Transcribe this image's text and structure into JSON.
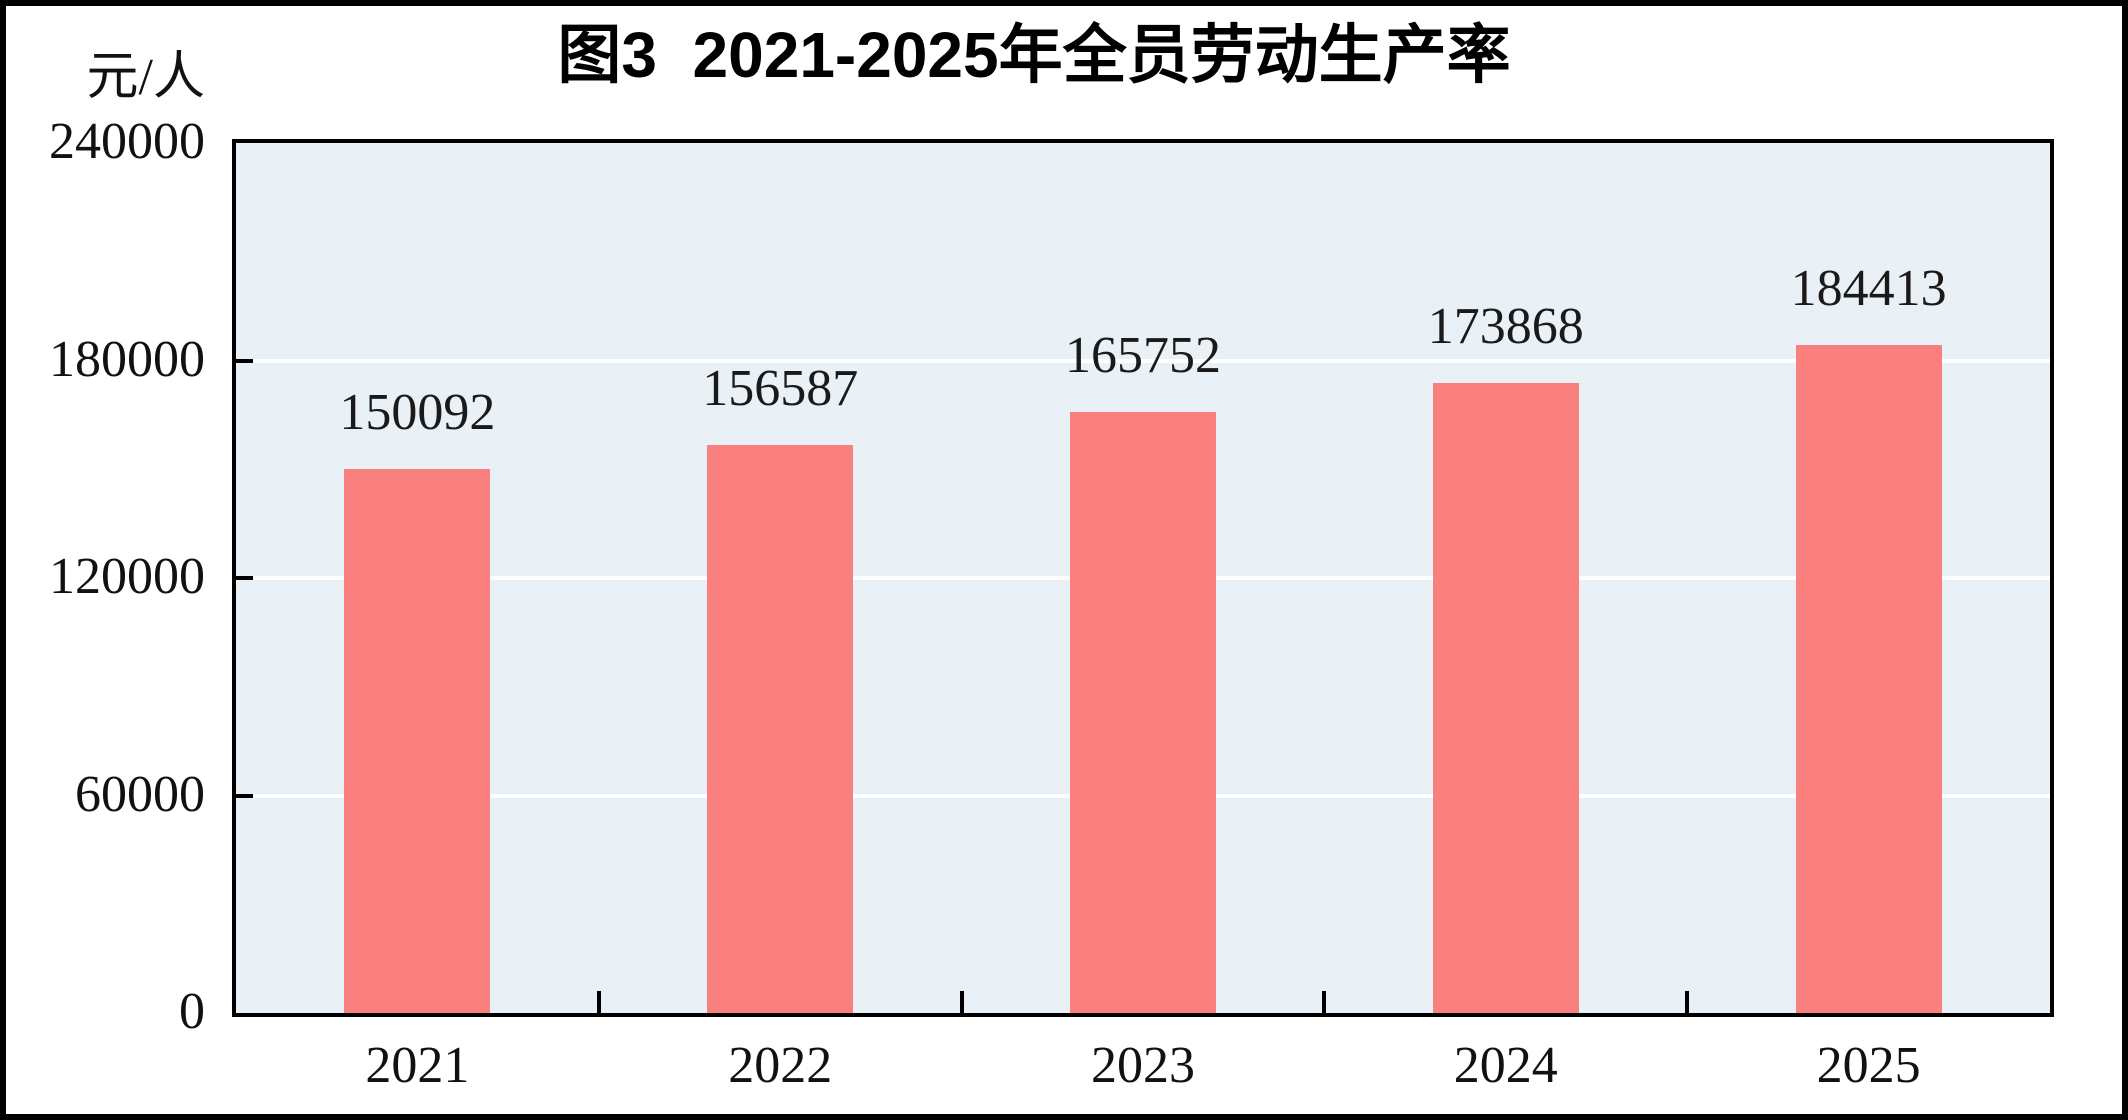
{
  "page": {
    "title": "图3  2021-2025年全员劳动生产率",
    "unit_label": "元/人"
  },
  "chart_data": {
    "type": "bar",
    "title": "图3  2021-2025年全员劳动生产率",
    "ylabel": "元/人",
    "xlabel": "",
    "categories": [
      "2021",
      "2022",
      "2023",
      "2024",
      "2025"
    ],
    "values": [
      150092,
      156587,
      165752,
      173868,
      184413
    ],
    "data_labels": [
      "150092",
      "156587",
      "165752",
      "173868",
      "184413"
    ],
    "ylim": [
      0,
      240000
    ],
    "yticks": [
      0,
      60000,
      120000,
      180000,
      240000
    ],
    "ytick_labels": [
      "0",
      "60000",
      "120000",
      "180000",
      "240000"
    ],
    "gridline_values": [
      60000,
      120000,
      180000
    ],
    "legend": "none",
    "grid": "horizontal",
    "bar_color": "#FA8080",
    "plot_background_color": "#E9F1F6",
    "gridline_color": "#FFFFFF",
    "axis_color": "#000000",
    "text_color": "#1A1A1A"
  }
}
